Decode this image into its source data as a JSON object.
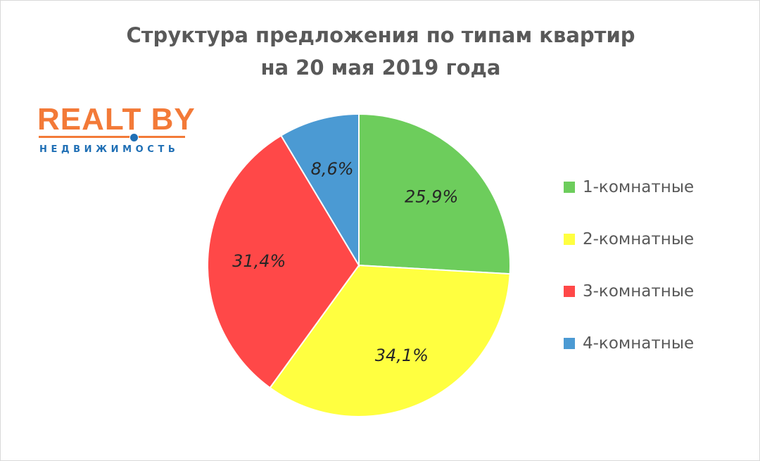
{
  "chart_data": {
    "type": "pie",
    "title": [
      "Структура предложения по типам квартир",
      "на 20 мая 2019 года"
    ],
    "slices": [
      {
        "name": "1-комнатные",
        "value": 25.9,
        "label": "25,9%",
        "color": "#6dcd5c"
      },
      {
        "name": "2-комнатные",
        "value": 34.1,
        "label": "34,1%",
        "color": "#ffff40"
      },
      {
        "name": "3-комнатные",
        "value": 31.4,
        "label": "31,4%",
        "color": "#ff4848"
      },
      {
        "name": "4-комнатные",
        "value": 8.6,
        "label": "8,6%",
        "color": "#4b9ad3"
      }
    ],
    "legend_position": "right",
    "start_angle": "12 o'clock",
    "direction": "clockwise"
  },
  "logo": {
    "main": "REALT BY",
    "sub": "НЕДВИЖИМОСТЬ",
    "main_color": "#f37a38",
    "accent_color": "#1f6fb5"
  }
}
